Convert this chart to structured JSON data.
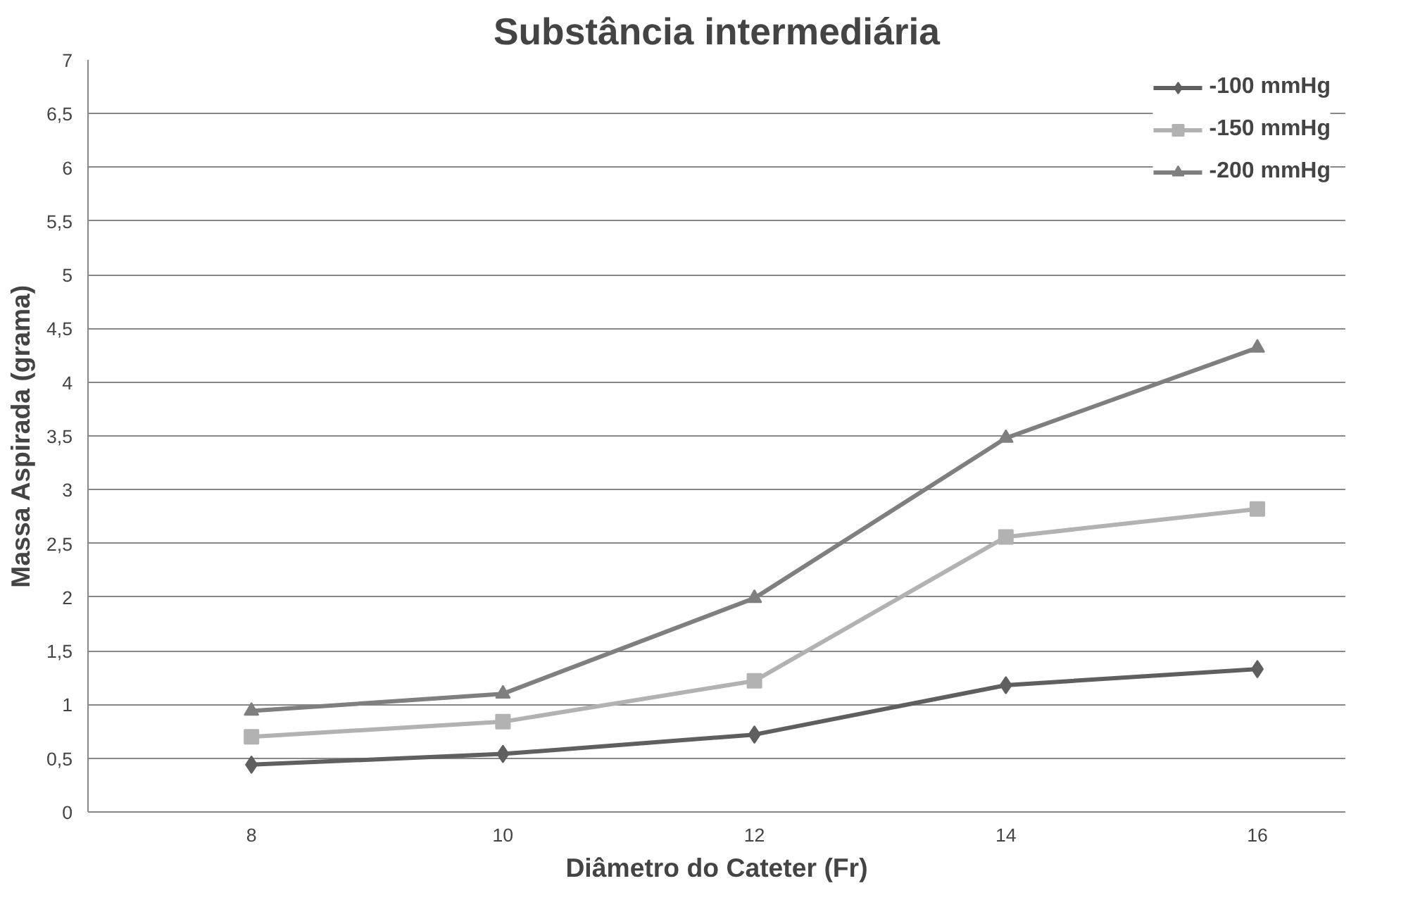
{
  "chart_data": {
    "type": "line",
    "title": "Substância intermediária",
    "xlabel": "Diâmetro do Cateter (Fr)",
    "ylabel": "Massa Aspirada (grama)",
    "categories": [
      "8",
      "10",
      "12",
      "14",
      "16"
    ],
    "series": [
      {
        "name": "-100 mmHg",
        "color": "#5f5f5f",
        "marker": "diamond",
        "values": [
          0.44,
          0.54,
          0.72,
          1.18,
          1.33
        ]
      },
      {
        "name": "-150 mmHg",
        "color": "#b2b2b2",
        "marker": "square",
        "values": [
          0.7,
          0.84,
          1.22,
          2.56,
          2.82
        ]
      },
      {
        "name": "-200 mmHg",
        "color": "#7f7f7f",
        "marker": "triangle",
        "values": [
          0.94,
          1.1,
          1.99,
          3.48,
          4.32
        ]
      }
    ],
    "ylim": [
      0,
      7
    ],
    "yticks": [
      0,
      {
        "value": 0.5,
        "label": "0,5"
      },
      1,
      {
        "value": 1.5,
        "label": "1,5"
      },
      2,
      {
        "value": 2.5,
        "label": "2,5"
      },
      3,
      {
        "value": 3.5,
        "label": "3,5"
      },
      4,
      {
        "value": 4.5,
        "label": "4,5"
      },
      5,
      {
        "value": 5.5,
        "label": "5,5"
      },
      6,
      {
        "value": 6.5,
        "label": "6,5"
      },
      7
    ],
    "grid": "y",
    "legend": "top right",
    "line_style": "solid"
  }
}
